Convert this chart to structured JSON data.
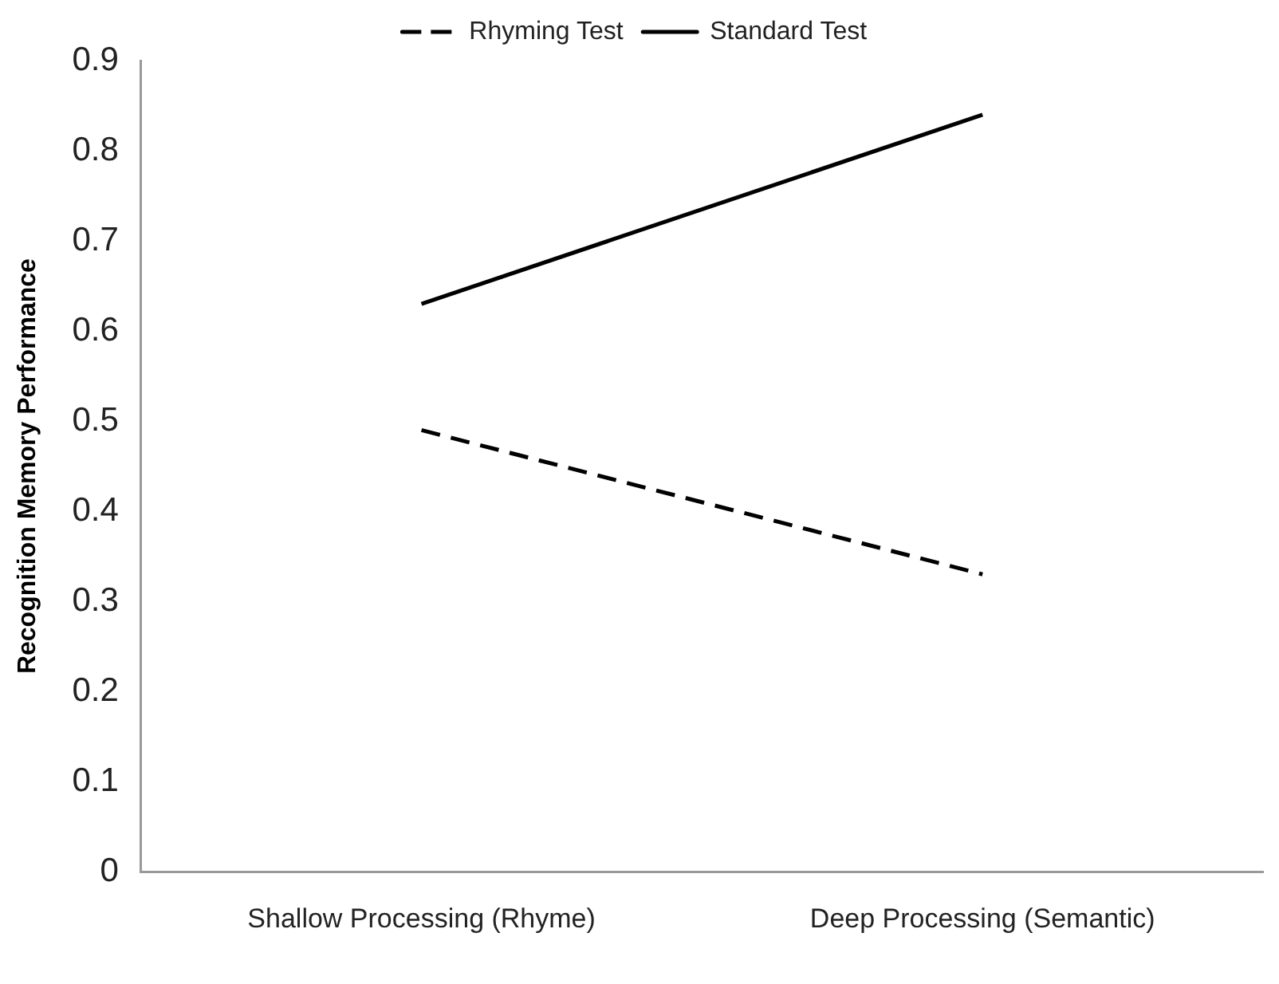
{
  "chart_data": {
    "type": "line",
    "ylabel": "Recognition Memory Performance",
    "categories": [
      "Shallow Processing (Rhyme)",
      "Deep Processing (Semantic)"
    ],
    "series": [
      {
        "name": "Rhyming Test",
        "color": "#000000",
        "values": [
          0.49,
          0.33
        ],
        "line_style": "dashed"
      },
      {
        "name": "Standard Test",
        "color": "#000000",
        "values": [
          0.63,
          0.84
        ],
        "line_style": "solid"
      }
    ],
    "ylim": [
      0,
      0.9
    ],
    "yticks": [
      0,
      0.1,
      0.2,
      0.3,
      0.4,
      0.5,
      0.6,
      0.7,
      0.8,
      0.9
    ],
    "grid": false,
    "legend": "top",
    "marker": "none"
  }
}
